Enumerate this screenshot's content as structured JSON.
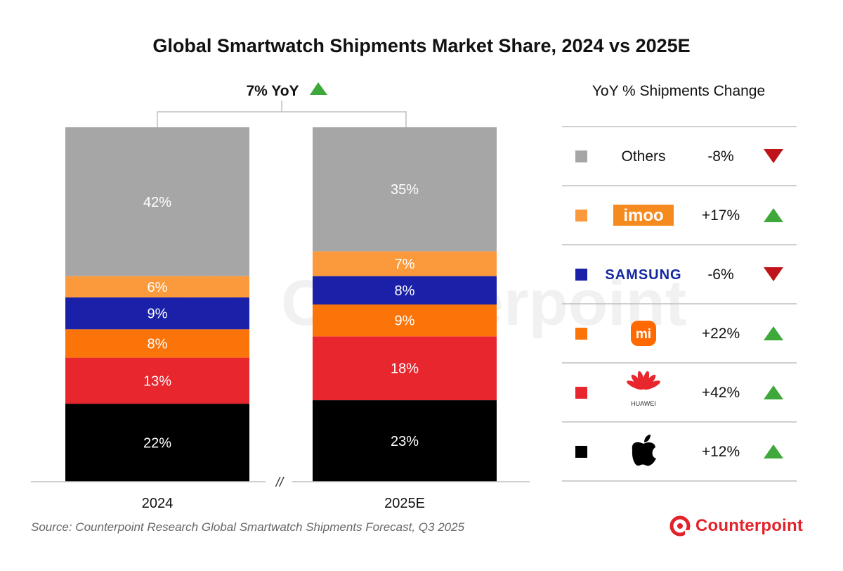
{
  "chart_data": {
    "type": "bar",
    "stacked": true,
    "title": "Global Smartwatch Shipments Market Share, 2024 vs 2025E",
    "categories": [
      "2024",
      "2025E"
    ],
    "axis_break_mark": "//",
    "total_change": {
      "label": "7% YoY",
      "direction": "up"
    },
    "series": [
      {
        "color": "#000000",
        "values": [
          22,
          23
        ],
        "labels": [
          "22%",
          "23%"
        ]
      },
      {
        "color": "#e8262e",
        "values": [
          13,
          18
        ],
        "labels": [
          "13%",
          "18%"
        ]
      },
      {
        "color": "#fb7409",
        "values": [
          8,
          9
        ],
        "labels": [
          "8%",
          "9%"
        ]
      },
      {
        "color": "#1a21a8",
        "values": [
          9,
          8
        ],
        "labels": [
          "9%",
          "8%"
        ]
      },
      {
        "color": "#fb9a3c",
        "values": [
          6,
          7
        ],
        "labels": [
          "6%",
          "7%"
        ]
      },
      {
        "color": "#a6a6a6",
        "values": [
          42,
          35
        ],
        "labels": [
          "42%",
          "35%"
        ]
      }
    ],
    "legend": {
      "title": "YoY % Shipments Change",
      "position": "right",
      "rows": [
        {
          "brand": "Others",
          "logo": "text",
          "color": "#a6a6a6",
          "change": "-8%",
          "direction": "down"
        },
        {
          "brand": "imoo",
          "logo": "imoo-logo",
          "color": "#fb9a3c",
          "change": "+17%",
          "direction": "up"
        },
        {
          "brand": "SAMSUNG",
          "logo": "samsung-logo",
          "color": "#1a21a8",
          "change": "-6%",
          "direction": "down"
        },
        {
          "brand": "mi",
          "logo": "xiaomi-logo",
          "color": "#fb7409",
          "change": "+22%",
          "direction": "up"
        },
        {
          "brand": "HUAWEI",
          "logo": "huawei-logo",
          "color": "#e8262e",
          "change": "+42%",
          "direction": "up"
        },
        {
          "brand": "",
          "logo": "apple-logo",
          "color": "#000000",
          "change": "+12%",
          "direction": "up"
        }
      ]
    }
  },
  "source": "Source: Counterpoint Research Global Smartwatch Shipments Forecast, Q3 2025",
  "brand": {
    "name": "Counterpoint",
    "watermark": "Counterpoint",
    "icon": "counterpoint-logo-icon"
  },
  "colors": {
    "up": "#3fa83a",
    "down": "#c0141b"
  }
}
